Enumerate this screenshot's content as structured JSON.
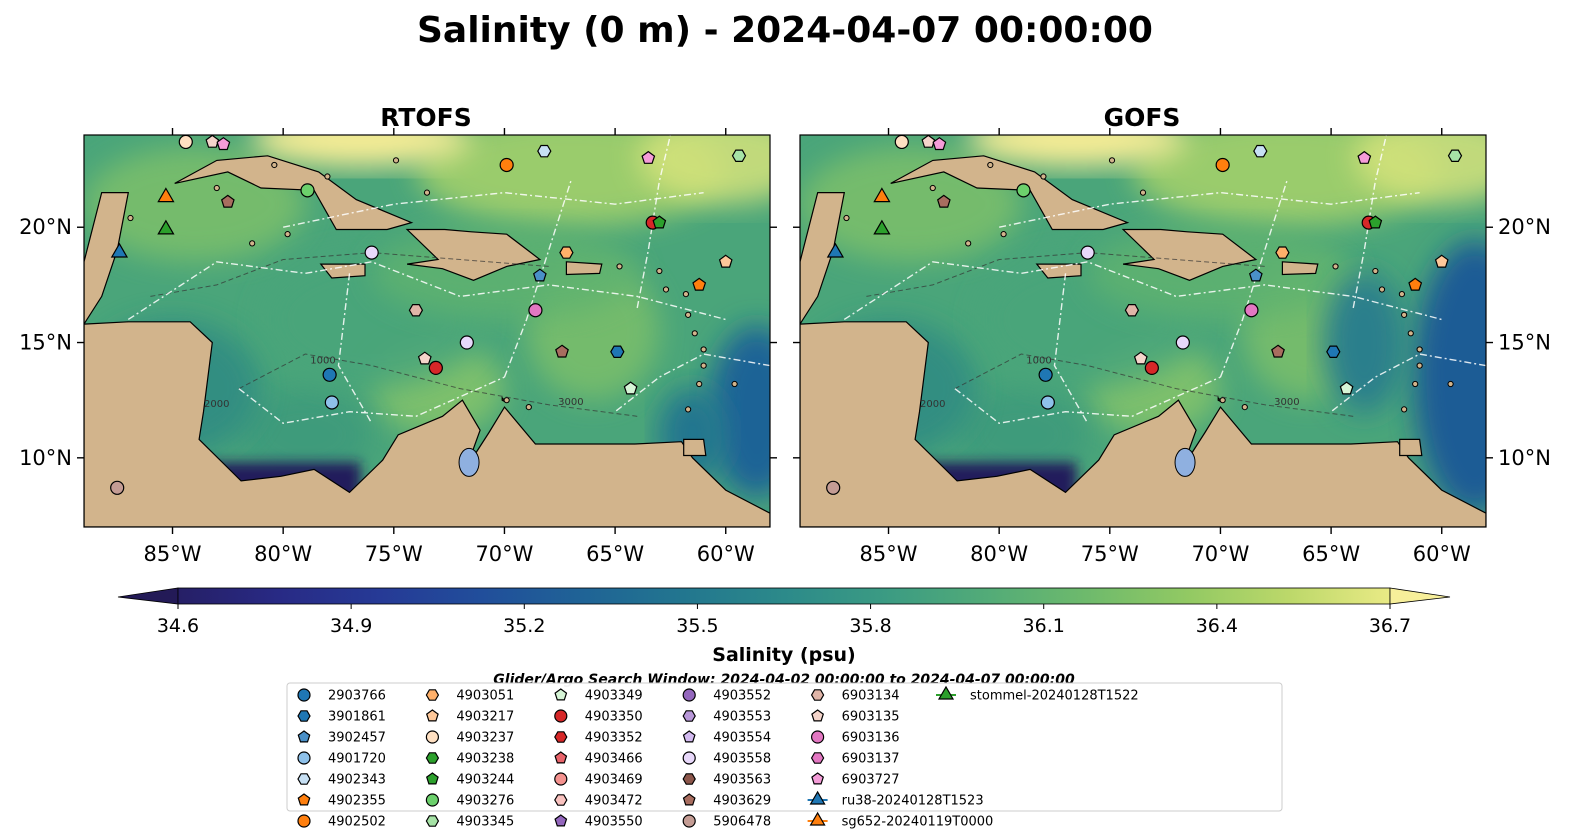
{
  "title": "Salinity (0 m) - 2024-04-07 00:00:00",
  "panels": [
    {
      "title": "RTOFS",
      "tone": "rtofs"
    },
    {
      "title": "GOFS",
      "tone": "gofs"
    }
  ],
  "map_extent": {
    "lon": [
      -89,
      -58
    ],
    "lat": [
      7,
      24
    ]
  },
  "lon_ticks": [
    -85,
    -80,
    -75,
    -70,
    -65,
    -60
  ],
  "lon_tick_labels": [
    "85°W",
    "80°W",
    "75°W",
    "70°W",
    "65°W",
    "60°W"
  ],
  "lat_ticks": [
    10,
    15,
    20
  ],
  "lat_tick_labels": [
    "10°N",
    "15°N",
    "20°N"
  ],
  "colorbar": {
    "label": "Salinity (psu)",
    "min": 34.6,
    "max": 36.7,
    "ticks": [
      34.6,
      34.9,
      35.2,
      35.5,
      35.8,
      36.1,
      36.4,
      36.7
    ],
    "tick_labels": [
      "34.6",
      "34.9",
      "35.2",
      "35.5",
      "35.8",
      "36.1",
      "36.4",
      "36.7"
    ],
    "extend": "both",
    "colors": [
      "#261f66",
      "#282a85",
      "#263a96",
      "#214e9b",
      "#1f6396",
      "#22768f",
      "#2c8a8a",
      "#3b9b83",
      "#52ab78",
      "#6eba6c",
      "#92c963",
      "#bcd86a",
      "#e9ea85"
    ]
  },
  "contour_labels": [
    "2000",
    "1000",
    "3000"
  ],
  "search_window": "Glider/Argo Search Window: 2024-04-02 00:00:00 to 2024-04-07 00:00:00",
  "legend": [
    {
      "label": "2903766",
      "marker": "circle",
      "color": "#1f77b4"
    },
    {
      "label": "3901861",
      "marker": "hexagon",
      "color": "#1f77b4"
    },
    {
      "label": "3902457",
      "marker": "pentagon",
      "color": "#4a90c8"
    },
    {
      "label": "4901720",
      "marker": "circle",
      "color": "#8ec1ea"
    },
    {
      "label": "4902343",
      "marker": "hexagon",
      "color": "#c7e0f4"
    },
    {
      "label": "4902355",
      "marker": "pentagon",
      "color": "#ff7f0e"
    },
    {
      "label": "4902502",
      "marker": "circle",
      "color": "#ff7f0e"
    },
    {
      "label": "4903051",
      "marker": "hexagon",
      "color": "#ffb06a"
    },
    {
      "label": "4903217",
      "marker": "pentagon",
      "color": "#fec89a"
    },
    {
      "label": "4903237",
      "marker": "circle",
      "color": "#ffe0c2"
    },
    {
      "label": "4903238",
      "marker": "hexagon",
      "color": "#2ca02c"
    },
    {
      "label": "4903244",
      "marker": "pentagon",
      "color": "#2ca02c"
    },
    {
      "label": "4903276",
      "marker": "circle",
      "color": "#6cd06c"
    },
    {
      "label": "4903345",
      "marker": "hexagon",
      "color": "#a6e3a6"
    },
    {
      "label": "4903349",
      "marker": "pentagon",
      "color": "#d6f5d6"
    },
    {
      "label": "4903350",
      "marker": "circle",
      "color": "#d62728"
    },
    {
      "label": "4903352",
      "marker": "hexagon",
      "color": "#d62728"
    },
    {
      "label": "4903466",
      "marker": "pentagon",
      "color": "#e8636a"
    },
    {
      "label": "4903469",
      "marker": "circle",
      "color": "#f4928f"
    },
    {
      "label": "4903472",
      "marker": "hexagon",
      "color": "#f9c2bf"
    },
    {
      "label": "4903550",
      "marker": "pentagon",
      "color": "#9467bd"
    },
    {
      "label": "4903552",
      "marker": "circle",
      "color": "#9467bd"
    },
    {
      "label": "4903553",
      "marker": "hexagon",
      "color": "#b897d8"
    },
    {
      "label": "4903554",
      "marker": "pentagon",
      "color": "#d3baf0"
    },
    {
      "label": "4903558",
      "marker": "circle",
      "color": "#e8d8fa"
    },
    {
      "label": "4903563",
      "marker": "hexagon",
      "color": "#8c564b"
    },
    {
      "label": "4903629",
      "marker": "pentagon",
      "color": "#a86d5f"
    },
    {
      "label": "5906478",
      "marker": "circle",
      "color": "#c49c94"
    },
    {
      "label": "6903134",
      "marker": "hexagon",
      "color": "#e0b5a8"
    },
    {
      "label": "6903135",
      "marker": "pentagon",
      "color": "#f5d5cb"
    },
    {
      "label": "6903136",
      "marker": "circle",
      "color": "#e377c2"
    },
    {
      "label": "6903137",
      "marker": "hexagon",
      "color": "#e377c2"
    },
    {
      "label": "6903727",
      "marker": "pentagon",
      "color": "#f49cd8"
    },
    {
      "label": "ru38-20240128T1523",
      "marker": "triangle-line",
      "color": "#1f77b4"
    },
    {
      "label": "sg652-20240119T0000",
      "marker": "triangle-line",
      "color": "#ff7f0e"
    },
    {
      "label": "stommel-20240128T1522",
      "marker": "triangle-line",
      "color": "#2ca02c"
    }
  ],
  "platforms": [
    {
      "id": "4903237",
      "lon": -84.4,
      "lat": 23.7
    },
    {
      "id": "6903135",
      "lon": -83.2,
      "lat": 23.7
    },
    {
      "id": "6903727",
      "lon": -82.7,
      "lat": 23.6
    },
    {
      "id": "4903276",
      "lon": -78.9,
      "lat": 21.6
    },
    {
      "id": "4902502",
      "lon": -69.9,
      "lat": 22.7
    },
    {
      "id": "4902343",
      "lon": -68.2,
      "lat": 23.3
    },
    {
      "id": "6903727",
      "lon": -63.5,
      "lat": 23.0
    },
    {
      "id": "4903345",
      "lon": -59.4,
      "lat": 23.1
    },
    {
      "id": "4903629",
      "lon": -82.5,
      "lat": 21.1
    },
    {
      "id": "4903558",
      "lon": -76.0,
      "lat": 18.9
    },
    {
      "id": "4903051",
      "lon": -67.2,
      "lat": 18.9
    },
    {
      "id": "4903350",
      "lon": -63.3,
      "lat": 20.2
    },
    {
      "id": "4903244",
      "lon": -63.0,
      "lat": 20.2
    },
    {
      "id": "4903217",
      "lon": -60.0,
      "lat": 18.5
    },
    {
      "id": "3902457",
      "lon": -68.4,
      "lat": 17.9
    },
    {
      "id": "4902355",
      "lon": -61.2,
      "lat": 17.5
    },
    {
      "id": "6903134",
      "lon": -74.0,
      "lat": 16.4
    },
    {
      "id": "6903136",
      "lon": -68.6,
      "lat": 16.4
    },
    {
      "id": "4903558",
      "lon": -71.7,
      "lat": 15.0
    },
    {
      "id": "4903629",
      "lon": -67.4,
      "lat": 14.6
    },
    {
      "id": "3901861",
      "lon": -64.9,
      "lat": 14.6
    },
    {
      "id": "6903135",
      "lon": -73.6,
      "lat": 14.3
    },
    {
      "id": "4903350",
      "lon": -73.1,
      "lat": 13.9
    },
    {
      "id": "2903766",
      "lon": -77.9,
      "lat": 13.6
    },
    {
      "id": "4903349",
      "lon": -64.3,
      "lat": 13.0
    },
    {
      "id": "4901720",
      "lon": -77.8,
      "lat": 12.4
    },
    {
      "id": "5906478",
      "lon": -87.5,
      "lat": 8.7
    }
  ],
  "gliders": [
    {
      "id": "sg652-20240119T0000",
      "lon": -85.3,
      "lat": 21.3
    },
    {
      "id": "stommel-20240128T1522",
      "lon": -85.3,
      "lat": 19.9
    },
    {
      "id": "ru38-20240128T1523",
      "lon": -87.4,
      "lat": 18.9
    }
  ]
}
